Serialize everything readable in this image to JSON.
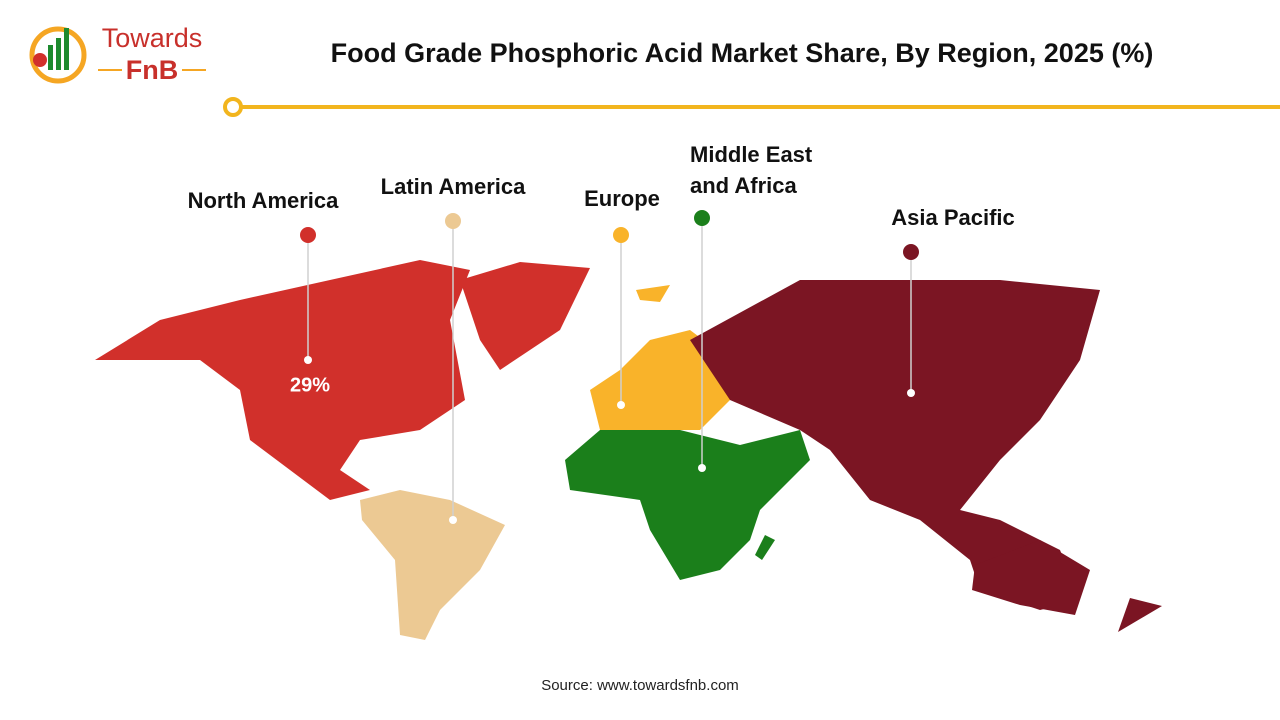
{
  "header": {
    "logo_top": "Towards",
    "logo_bottom": "FnB",
    "title": "Food Grade Phosphoric Acid Market Share, By Region, 2025 (%)"
  },
  "regions": [
    {
      "name": "North America",
      "value_label": "29%"
    },
    {
      "name": "Latin America"
    },
    {
      "name": "Europe"
    },
    {
      "name_line1": "Middle East",
      "name_line2": "and Africa"
    },
    {
      "name": "Asia Pacific"
    }
  ],
  "footer": {
    "source": "Source: www.towardsfnb.com"
  }
}
